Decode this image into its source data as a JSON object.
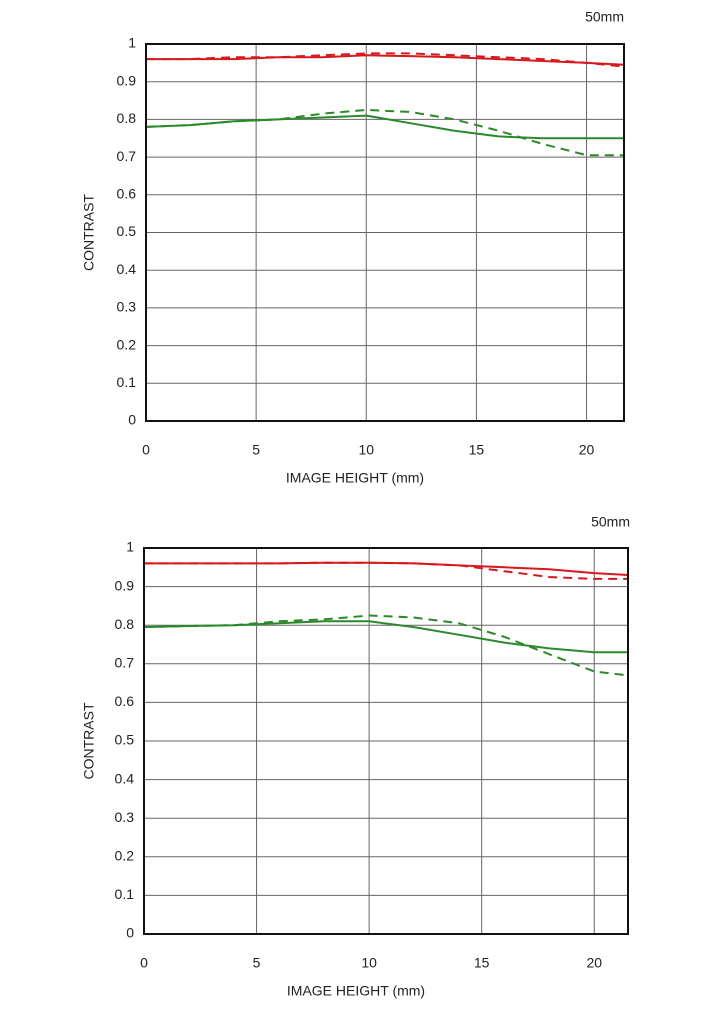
{
  "chart_data": [
    {
      "type": "line",
      "annotation": "50mm",
      "xlabel": "IMAGE HEIGHT (mm)",
      "ylabel": "CONTRAST",
      "x": [
        0,
        2,
        4,
        6,
        8,
        10,
        12,
        14,
        16,
        18,
        20,
        21.7
      ],
      "xlim": [
        0,
        21.7
      ],
      "ylim": [
        0,
        1
      ],
      "xticks": [
        0,
        5,
        10,
        15,
        20
      ],
      "yticks": [
        0,
        0.1,
        0.2,
        0.3,
        0.4,
        0.5,
        0.6,
        0.7,
        0.8,
        0.9,
        1
      ],
      "grid": true,
      "series": [
        {
          "color": "#d7191c",
          "dashed": false,
          "values": [
            0.96,
            0.96,
            0.96,
            0.965,
            0.965,
            0.97,
            0.968,
            0.965,
            0.96,
            0.955,
            0.95,
            0.945
          ]
        },
        {
          "color": "#d7191c",
          "dashed": true,
          "values": [
            0.96,
            0.96,
            0.965,
            0.965,
            0.97,
            0.975,
            0.975,
            0.97,
            0.965,
            0.96,
            0.95,
            0.94
          ]
        },
        {
          "color": "#2a8a2a",
          "dashed": false,
          "values": [
            0.78,
            0.785,
            0.795,
            0.8,
            0.805,
            0.81,
            0.79,
            0.77,
            0.755,
            0.75,
            0.75,
            0.75
          ]
        },
        {
          "color": "#2a8a2a",
          "dashed": true,
          "values": [
            0.78,
            0.785,
            0.795,
            0.8,
            0.815,
            0.825,
            0.82,
            0.8,
            0.77,
            0.735,
            0.705,
            0.705
          ]
        }
      ]
    },
    {
      "type": "line",
      "annotation": "50mm",
      "xlabel": "IMAGE HEIGHT (mm)",
      "ylabel": "CONTRAST",
      "x": [
        0,
        2,
        4,
        6,
        8,
        10,
        12,
        14,
        16,
        18,
        20,
        21.5
      ],
      "xlim": [
        0,
        21.5
      ],
      "ylim": [
        0,
        1
      ],
      "xticks": [
        0,
        5,
        10,
        15,
        20
      ],
      "yticks": [
        0,
        0.1,
        0.2,
        0.3,
        0.4,
        0.5,
        0.6,
        0.7,
        0.8,
        0.9,
        1
      ],
      "grid": true,
      "series": [
        {
          "color": "#d7191c",
          "dashed": false,
          "values": [
            0.96,
            0.96,
            0.96,
            0.96,
            0.962,
            0.962,
            0.96,
            0.955,
            0.95,
            0.945,
            0.935,
            0.93
          ]
        },
        {
          "color": "#d7191c",
          "dashed": true,
          "values": [
            0.96,
            0.96,
            0.96,
            0.96,
            0.962,
            0.962,
            0.96,
            0.955,
            0.94,
            0.925,
            0.92,
            0.92
          ]
        },
        {
          "color": "#2a8a2a",
          "dashed": false,
          "values": [
            0.795,
            0.798,
            0.8,
            0.805,
            0.81,
            0.81,
            0.795,
            0.775,
            0.755,
            0.74,
            0.73,
            0.73
          ]
        },
        {
          "color": "#2a8a2a",
          "dashed": true,
          "values": [
            0.795,
            0.798,
            0.8,
            0.81,
            0.815,
            0.825,
            0.82,
            0.805,
            0.77,
            0.725,
            0.68,
            0.67
          ]
        }
      ]
    }
  ]
}
